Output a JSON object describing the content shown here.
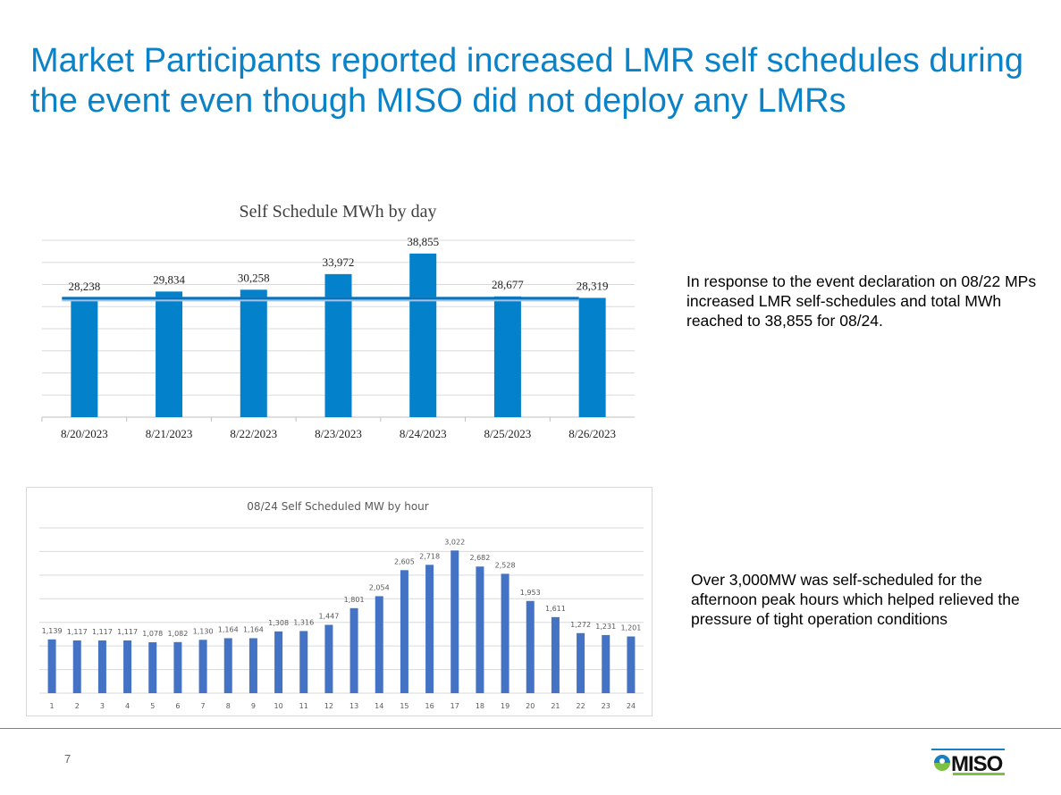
{
  "title": "Market Participants reported increased LMR self schedules during the event even though MISO did not deploy any LMRs",
  "notes": [
    "In response to the event declaration on 08/22 MPs increased LMR self-schedules and total MWh reached to 38,855 for 08/24.",
    "Over 3,000MW was self-scheduled for the afternoon peak hours which helped relieved the pressure of tight operation conditions"
  ],
  "page_number": "7",
  "logo_text": "MISO",
  "colors": {
    "title": "#0a82c8",
    "bar1": "#0481cb",
    "bar2": "#4472c4",
    "grid": "#d9d9d9"
  },
  "chart_data": [
    {
      "type": "bar",
      "title": "Self Schedule MWh by day",
      "categories": [
        "8/20/2023",
        "8/21/2023",
        "8/22/2023",
        "8/23/2023",
        "8/24/2023",
        "8/25/2023",
        "8/26/2023"
      ],
      "values": [
        28238,
        29834,
        30258,
        33972,
        38855,
        28677,
        28319
      ],
      "labels": [
        "28,238",
        "29,834",
        "30,258",
        "33,972",
        "38,855",
        "28,677",
        "28,319"
      ],
      "reference_line": 28238,
      "ylim": [
        0,
        42000
      ],
      "grid": true,
      "xlabel": "",
      "ylabel": ""
    },
    {
      "type": "bar",
      "title": "08/24 Self Scheduled MW by hour",
      "categories": [
        "1",
        "2",
        "3",
        "4",
        "5",
        "6",
        "7",
        "8",
        "9",
        "10",
        "11",
        "12",
        "13",
        "14",
        "15",
        "16",
        "17",
        "18",
        "19",
        "20",
        "21",
        "22",
        "23",
        "24"
      ],
      "values": [
        1139,
        1117,
        1117,
        1117,
        1078,
        1082,
        1130,
        1164,
        1164,
        1308,
        1316,
        1447,
        1801,
        2054,
        2605,
        2718,
        3022,
        2682,
        2528,
        1953,
        1611,
        1272,
        1231,
        1201
      ],
      "labels": [
        "1,139",
        "1,117",
        "1,117",
        "1,117",
        "1,078",
        "1,082",
        "1,130",
        "1,164",
        "1,164",
        "1,308",
        "1,316",
        "1,447",
        "1,801",
        "2,054",
        "2,605",
        "2,718",
        "3,022",
        "2,682",
        "2,528",
        "1,953",
        "1,611",
        "1,272",
        "1,231",
        "1,201"
      ],
      "ylim": [
        0,
        3500
      ],
      "grid": true,
      "xlabel": "",
      "ylabel": ""
    }
  ]
}
